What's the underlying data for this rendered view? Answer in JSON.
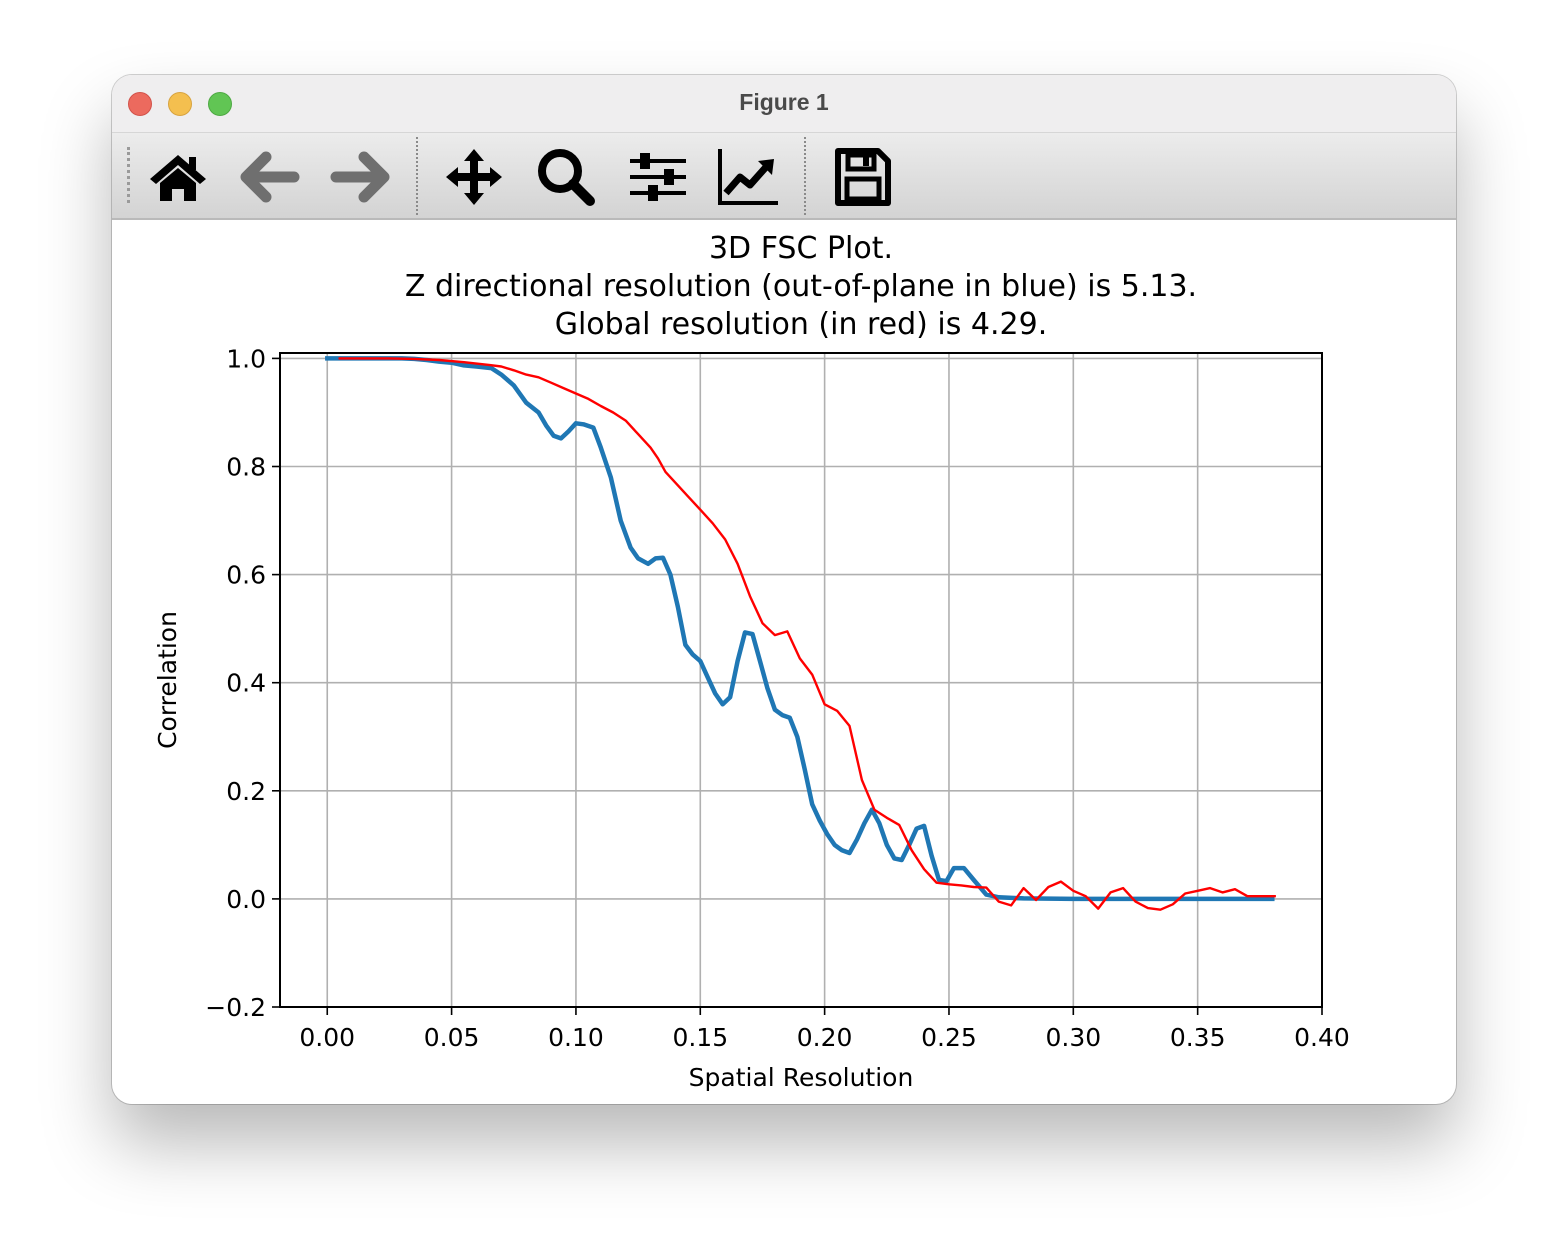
{
  "window": {
    "title": "Figure 1",
    "toolbar": [
      {
        "name": "home-icon"
      },
      {
        "name": "back-arrow-icon"
      },
      {
        "name": "forward-arrow-icon"
      },
      {
        "name": "pan-move-icon"
      },
      {
        "name": "zoom-magnifier-icon"
      },
      {
        "name": "subplots-configure-icon"
      },
      {
        "name": "edit-axis-curve-icon"
      },
      {
        "name": "save-disk-icon"
      }
    ]
  },
  "chart_data": {
    "type": "line",
    "title_lines": [
      "3D FSC Plot.",
      "Z directional resolution (out-of-plane in blue) is 5.13.",
      "Global resolution (in red) is 4.29."
    ],
    "xlabel": "Spatial Resolution",
    "ylabel": "Correlation",
    "xlim": [
      -0.019,
      0.4
    ],
    "ylim": [
      -0.2,
      1.01
    ],
    "xticks": [
      0.0,
      0.05,
      0.1,
      0.15,
      0.2,
      0.25,
      0.3,
      0.35,
      0.4
    ],
    "xtick_labels": [
      "0.00",
      "0.05",
      "0.10",
      "0.15",
      "0.20",
      "0.25",
      "0.30",
      "0.35",
      "0.40"
    ],
    "yticks": [
      -0.2,
      0.0,
      0.2,
      0.4,
      0.6,
      0.8,
      1.0
    ],
    "ytick_labels": [
      "−0.2",
      "0.0",
      "0.2",
      "0.4",
      "0.6",
      "0.8",
      "1.0"
    ],
    "grid": true,
    "colors": {
      "blue": "#1f77b4",
      "red": "#ff0000",
      "grid": "#b0b0b0"
    },
    "series": [
      {
        "color": "#1f77b4",
        "x": [
          0.0,
          0.01,
          0.02,
          0.03,
          0.035,
          0.04,
          0.045,
          0.05,
          0.055,
          0.06,
          0.066,
          0.07,
          0.075,
          0.08,
          0.085,
          0.088,
          0.091,
          0.094,
          0.097,
          0.1,
          0.103,
          0.107,
          0.11,
          0.114,
          0.118,
          0.122,
          0.125,
          0.129,
          0.132,
          0.135,
          0.138,
          0.141,
          0.144,
          0.147,
          0.15,
          0.153,
          0.156,
          0.159,
          0.162,
          0.165,
          0.168,
          0.171,
          0.174,
          0.177,
          0.18,
          0.183,
          0.186,
          0.189,
          0.192,
          0.195,
          0.198,
          0.201,
          0.204,
          0.207,
          0.21,
          0.213,
          0.216,
          0.219,
          0.222,
          0.225,
          0.228,
          0.231,
          0.234,
          0.237,
          0.24,
          0.243,
          0.246,
          0.249,
          0.252,
          0.256,
          0.26,
          0.265,
          0.27,
          0.28,
          0.3,
          0.32,
          0.34,
          0.36,
          0.38
        ],
        "y": [
          1.0,
          1.0,
          1.0,
          1.0,
          0.999,
          0.997,
          0.994,
          0.992,
          0.987,
          0.985,
          0.982,
          0.97,
          0.95,
          0.918,
          0.9,
          0.876,
          0.857,
          0.852,
          0.865,
          0.88,
          0.878,
          0.872,
          0.835,
          0.78,
          0.7,
          0.65,
          0.63,
          0.62,
          0.63,
          0.631,
          0.6,
          0.54,
          0.47,
          0.452,
          0.44,
          0.41,
          0.38,
          0.36,
          0.373,
          0.44,
          0.493,
          0.49,
          0.44,
          0.39,
          0.35,
          0.34,
          0.335,
          0.3,
          0.24,
          0.175,
          0.145,
          0.12,
          0.1,
          0.09,
          0.085,
          0.11,
          0.14,
          0.165,
          0.14,
          0.1,
          0.075,
          0.072,
          0.1,
          0.13,
          0.135,
          0.08,
          0.035,
          0.033,
          0.057,
          0.057,
          0.035,
          0.008,
          0.003,
          0.001,
          0.0,
          0.0,
          0.0,
          0.0,
          0.0
        ]
      },
      {
        "color": "#ff0000",
        "x": [
          0.005,
          0.015,
          0.025,
          0.035,
          0.045,
          0.055,
          0.065,
          0.07,
          0.075,
          0.08,
          0.085,
          0.09,
          0.095,
          0.1,
          0.105,
          0.11,
          0.115,
          0.12,
          0.125,
          0.13,
          0.133,
          0.136,
          0.14,
          0.145,
          0.15,
          0.155,
          0.16,
          0.165,
          0.17,
          0.175,
          0.18,
          0.185,
          0.19,
          0.195,
          0.2,
          0.205,
          0.21,
          0.215,
          0.22,
          0.225,
          0.23,
          0.235,
          0.24,
          0.245,
          0.25,
          0.255,
          0.26,
          0.265,
          0.27,
          0.275,
          0.28,
          0.285,
          0.29,
          0.295,
          0.3,
          0.305,
          0.31,
          0.315,
          0.32,
          0.325,
          0.33,
          0.335,
          0.34,
          0.345,
          0.35,
          0.355,
          0.36,
          0.365,
          0.37,
          0.375,
          0.381
        ],
        "y": [
          1.0,
          1.0,
          1.0,
          0.999,
          0.997,
          0.993,
          0.988,
          0.985,
          0.978,
          0.97,
          0.965,
          0.955,
          0.945,
          0.935,
          0.925,
          0.912,
          0.9,
          0.885,
          0.86,
          0.835,
          0.815,
          0.79,
          0.77,
          0.745,
          0.72,
          0.695,
          0.665,
          0.62,
          0.56,
          0.51,
          0.488,
          0.495,
          0.445,
          0.415,
          0.36,
          0.348,
          0.32,
          0.22,
          0.165,
          0.15,
          0.137,
          0.09,
          0.055,
          0.03,
          0.027,
          0.025,
          0.022,
          0.021,
          -0.005,
          -0.012,
          0.02,
          -0.002,
          0.022,
          0.032,
          0.015,
          0.005,
          -0.018,
          0.012,
          0.02,
          -0.005,
          -0.017,
          -0.02,
          -0.01,
          0.01,
          0.015,
          0.02,
          0.012,
          0.018,
          0.005,
          0.005,
          0.005
        ]
      }
    ]
  }
}
